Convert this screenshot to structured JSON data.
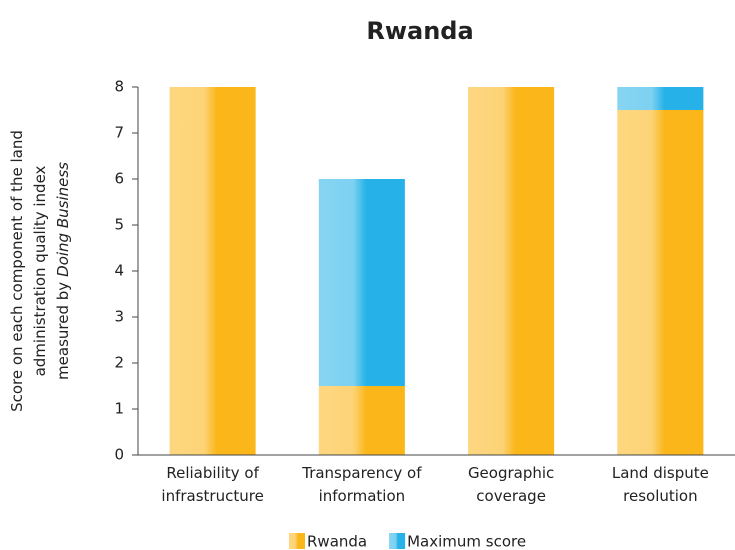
{
  "chart_data": {
    "type": "stacked_bar",
    "title": "Rwanda",
    "ylabel_lines": [
      "Score on each component of the land",
      "administration quality index"
    ],
    "ylabel_last": [
      "measured by",
      "Doing Business"
    ],
    "categories": [
      [
        "Reliability of",
        "infrastructure"
      ],
      [
        "Transparency of",
        "information"
      ],
      [
        "Geographic",
        "coverage"
      ],
      [
        "Land dispute",
        "resolution"
      ]
    ],
    "series": [
      {
        "name": "Rwanda",
        "color": "#fbb61a",
        "values": [
          8,
          1.5,
          8,
          7.5
        ]
      },
      {
        "name": "Maximum score",
        "color": "#26b2e8",
        "values": [
          0,
          4.5,
          0,
          0.5
        ]
      }
    ],
    "ylim": [
      0,
      8
    ],
    "yticks": [
      0,
      1,
      2,
      3,
      4,
      5,
      6,
      7,
      8
    ],
    "legend": "bottom"
  }
}
